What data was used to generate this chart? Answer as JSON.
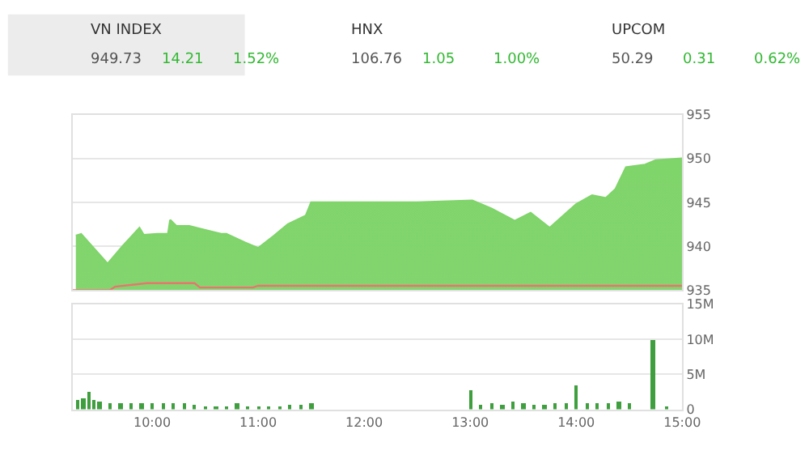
{
  "chart_data": [
    {
      "type": "other",
      "annotations": [
        "VN INDEX",
        "949.73",
        "14.21",
        "1.52%",
        "HNX",
        "106.76",
        "1.05",
        "1.00%",
        "UPCOM",
        "50.29",
        "0.31",
        "0.62%"
      ]
    },
    {
      "type": "area",
      "tick_labels": "y",
      "grid": "y",
      "xlim": [
        9.25,
        15
      ],
      "xticks": [
        {
          "value": 10,
          "label": null
        },
        {
          "value": 11,
          "label": null
        },
        {
          "value": 12,
          "label": null
        },
        {
          "value": 13,
          "label": null
        },
        {
          "value": 14,
          "label": null
        },
        {
          "value": 15,
          "label": null
        }
      ],
      "ylim": [
        935,
        955
      ],
      "yticks": [
        935,
        940,
        945,
        950,
        955
      ],
      "series": [
        {
          "type": "area",
          "color": "#7fd46a",
          "x": [
            9.28,
            9.33,
            9.58,
            9.72,
            9.88,
            9.92,
            10.05,
            10.15,
            10.17,
            10.23,
            10.35,
            10.65,
            10.7,
            10.88,
            11.0,
            11.15,
            11.28,
            11.45,
            11.5,
            12.0,
            12.5,
            13.02,
            13.2,
            13.42,
            13.47,
            13.57,
            13.75,
            14.0,
            14.15,
            14.28,
            14.37,
            14.47,
            14.65,
            14.75,
            15.0
          ],
          "values": [
            941.2,
            941.4,
            938.0,
            940.0,
            942.1,
            941.3,
            941.4,
            941.4,
            943.0,
            942.3,
            942.3,
            941.4,
            941.4,
            940.4,
            939.8,
            941.2,
            942.5,
            943.5,
            945.0,
            945.0,
            945.0,
            945.2,
            944.3,
            942.9,
            943.2,
            943.8,
            942.1,
            944.8,
            945.8,
            945.5,
            946.5,
            949.0,
            949.3,
            949.8,
            950.0
          ]
        },
        {
          "type": "line",
          "color": "#e8756f",
          "x": [
            9.25,
            9.6,
            9.65,
            9.95,
            10.4,
            10.45,
            10.95,
            11.0,
            11.5,
            13.0,
            15.0
          ],
          "values": [
            935.0,
            935.0,
            935.4,
            935.8,
            935.8,
            935.3,
            935.3,
            935.5,
            935.5,
            935.5,
            935.5
          ]
        }
      ]
    },
    {
      "type": "bar",
      "grid": "y",
      "xlim": [
        9.25,
        15
      ],
      "xticks": [
        {
          "value": 10,
          "label": "10:00"
        },
        {
          "value": 11,
          "label": "11:00"
        },
        {
          "value": 12,
          "label": "12:00"
        },
        {
          "value": 13,
          "label": "13:00"
        },
        {
          "value": 14,
          "label": "14:00"
        },
        {
          "value": 15,
          "label": "15:00"
        }
      ],
      "ylim": [
        0,
        15
      ],
      "yticks": [
        {
          "value": 0,
          "label": "0"
        },
        {
          "value": 5,
          "label": "5M"
        },
        {
          "value": 10,
          "label": "10M"
        },
        {
          "value": 15,
          "label": "15M"
        }
      ],
      "series": [
        {
          "color": "#3f9f3f",
          "x": [
            9.3,
            9.35,
            9.4,
            9.45,
            9.5,
            9.6,
            9.7,
            9.8,
            9.9,
            10.0,
            10.1,
            10.2,
            10.3,
            10.4,
            10.5,
            10.6,
            10.7,
            10.8,
            10.9,
            11.0,
            11.1,
            11.2,
            11.3,
            11.4,
            11.5,
            13.0,
            13.1,
            13.2,
            13.3,
            13.4,
            13.5,
            13.6,
            13.7,
            13.8,
            13.9,
            14.0,
            14.1,
            14.2,
            14.3,
            14.4,
            14.5,
            14.72,
            14.85
          ],
          "values": [
            1.3,
            1.5,
            2.6,
            1.4,
            1.1,
            0.8,
            0.9,
            1.0,
            0.9,
            0.8,
            0.9,
            0.8,
            1.0,
            0.6,
            0.5,
            0.5,
            0.5,
            0.8,
            0.5,
            0.5,
            0.5,
            0.5,
            0.6,
            0.6,
            0.8,
            2.8,
            0.7,
            0.8,
            0.7,
            1.1,
            0.8,
            0.7,
            0.7,
            0.8,
            0.9,
            3.5,
            0.8,
            0.9,
            1.0,
            1.1,
            0.9,
            10.0,
            0.2
          ]
        }
      ]
    }
  ]
}
